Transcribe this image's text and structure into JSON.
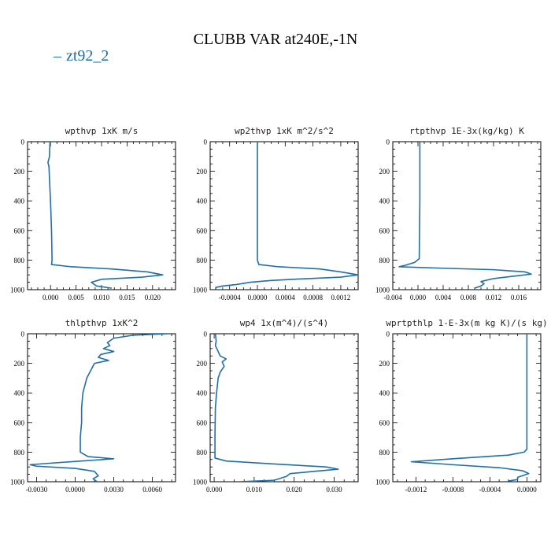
{
  "figure": {
    "title": "CLUBB VAR at240E,-1N",
    "legend_label": "zt92_2",
    "legend_color": "#1f6fa8"
  },
  "chart_data": [
    {
      "type": "line",
      "title": "wpthvp   1xK m/s",
      "xlim": [
        -0.0045,
        0.0245
      ],
      "ylim": [
        1000,
        0
      ],
      "xticks": [
        0.0,
        0.005,
        0.01,
        0.015,
        0.02
      ],
      "xtick_labels": [
        "0.000",
        "0.005",
        "0.010",
        "0.015",
        "0.020"
      ],
      "yticks": [
        0,
        200,
        400,
        600,
        800,
        1000
      ],
      "series": [
        {
          "color": "#1f6fa8",
          "points": [
            [
              -0.0001,
              0
            ],
            [
              -0.0002,
              100
            ],
            [
              -0.0005,
              140
            ],
            [
              -0.0003,
              170
            ],
            [
              -0.0002,
              250
            ],
            [
              0.0,
              400
            ],
            [
              0.0002,
              600
            ],
            [
              0.0003,
              800
            ],
            [
              0.0002,
              830
            ],
            [
              0.004,
              845
            ],
            [
              0.012,
              860
            ],
            [
              0.019,
              880
            ],
            [
              0.022,
              900
            ],
            [
              0.018,
              915
            ],
            [
              0.01,
              930
            ],
            [
              0.008,
              950
            ],
            [
              0.009,
              975
            ],
            [
              0.012,
              990
            ]
          ]
        }
      ]
    },
    {
      "type": "line",
      "title": "wp2thvp   1xK m^2/s^2",
      "xlim": [
        -0.00068,
        0.00145
      ],
      "ylim": [
        1000,
        0
      ],
      "xticks": [
        -0.0004,
        0.0,
        0.0004,
        0.0008,
        0.0012
      ],
      "xtick_labels": [
        "-0.0004",
        "0.0000",
        "0.0004",
        "0.0008",
        "0.0012"
      ],
      "yticks": [
        0,
        200,
        400,
        600,
        800,
        1000
      ],
      "series": [
        {
          "color": "#1f6fa8",
          "points": [
            [
              0.0,
              0
            ],
            [
              0.0,
              400
            ],
            [
              0.0,
              800
            ],
            [
              2e-05,
              830
            ],
            [
              0.0003,
              845
            ],
            [
              0.0009,
              860
            ],
            [
              0.0012,
              880
            ],
            [
              0.00145,
              900
            ],
            [
              0.0012,
              915
            ],
            [
              0.0006,
              928
            ],
            [
              0.0002,
              938
            ],
            [
              -0.0001,
              950
            ],
            [
              -0.0003,
              965
            ],
            [
              -0.0005,
              975
            ],
            [
              -0.0006,
              985
            ],
            [
              -0.0006,
              995
            ]
          ]
        }
      ]
    },
    {
      "type": "line",
      "title": "rtpthvp   1E-3x(kg/kg) K",
      "xlim": [
        -0.004,
        0.0195
      ],
      "ylim": [
        1000,
        0
      ],
      "xticks": [
        -0.004,
        0.0,
        0.004,
        0.008,
        0.012,
        0.016
      ],
      "xtick_labels": [
        "-0.004",
        "0.000",
        "0.004",
        "0.008",
        "0.012",
        "0.016"
      ],
      "yticks": [
        0,
        200,
        400,
        600,
        800,
        1000
      ],
      "series": [
        {
          "color": "#1f6fa8",
          "points": [
            [
              0.0003,
              0
            ],
            [
              0.0003,
              400
            ],
            [
              0.0002,
              790
            ],
            [
              -0.0005,
              815
            ],
            [
              -0.002,
              835
            ],
            [
              -0.003,
              845
            ],
            [
              0.004,
              855
            ],
            [
              0.012,
              865
            ],
            [
              0.017,
              880
            ],
            [
              0.018,
              895
            ],
            [
              0.015,
              910
            ],
            [
              0.012,
              925
            ],
            [
              0.01,
              945
            ],
            [
              0.0105,
              960
            ],
            [
              0.01,
              975
            ],
            [
              0.009,
              990
            ]
          ]
        }
      ]
    },
    {
      "type": "line",
      "title": "thlpthvp   1xK^2",
      "xlim": [
        -0.0037,
        0.0078
      ],
      "ylim": [
        1000,
        0
      ],
      "xticks": [
        -0.003,
        0.0,
        0.003,
        0.006
      ],
      "xtick_labels": [
        "-0.0030",
        "0.0000",
        "0.0030",
        "0.0060"
      ],
      "yticks": [
        0,
        200,
        400,
        600,
        800,
        1000
      ],
      "series": [
        {
          "color": "#1f6fa8",
          "points": [
            [
              0.0072,
              0
            ],
            [
              0.0045,
              10
            ],
            [
              0.003,
              30
            ],
            [
              0.0025,
              60
            ],
            [
              0.0027,
              80
            ],
            [
              0.0022,
              100
            ],
            [
              0.003,
              120
            ],
            [
              0.002,
              140
            ],
            [
              0.0018,
              160
            ],
            [
              0.0026,
              180
            ],
            [
              0.0015,
              200
            ],
            [
              0.0012,
              250
            ],
            [
              0.0009,
              300
            ],
            [
              0.0006,
              400
            ],
            [
              0.0005,
              500
            ],
            [
              0.0005,
              600
            ],
            [
              0.0004,
              700
            ],
            [
              0.0004,
              800
            ],
            [
              0.001,
              830
            ],
            [
              0.003,
              845
            ],
            [
              0.0005,
              860
            ],
            [
              -0.002,
              875
            ],
            [
              -0.0035,
              885
            ],
            [
              -0.003,
              895
            ],
            [
              0.0,
              910
            ],
            [
              0.0015,
              930
            ],
            [
              0.0018,
              960
            ],
            [
              0.0014,
              980
            ],
            [
              0.0017,
              1000
            ]
          ]
        }
      ]
    },
    {
      "type": "line",
      "title": "wp4   1x(m^4)/(s^4)",
      "xlim": [
        -0.001,
        0.036
      ],
      "ylim": [
        1000,
        0
      ],
      "xticks": [
        0.0,
        0.01,
        0.02,
        0.03
      ],
      "xtick_labels": [
        "0.000",
        "0.010",
        "0.020",
        "0.030"
      ],
      "yticks": [
        0,
        200,
        400,
        600,
        800,
        1000
      ],
      "series": [
        {
          "color": "#1f6fa8",
          "points": [
            [
              0.0003,
              0
            ],
            [
              0.0005,
              50
            ],
            [
              0.0003,
              80
            ],
            [
              0.001,
              120
            ],
            [
              0.0015,
              150
            ],
            [
              0.003,
              170
            ],
            [
              0.002,
              190
            ],
            [
              0.0025,
              220
            ],
            [
              0.0015,
              260
            ],
            [
              0.001,
              300
            ],
            [
              0.0006,
              400
            ],
            [
              0.0003,
              500
            ],
            [
              0.0002,
              700
            ],
            [
              0.0002,
              840
            ],
            [
              0.003,
              860
            ],
            [
              0.015,
              880
            ],
            [
              0.028,
              900
            ],
            [
              0.031,
              915
            ],
            [
              0.025,
              930
            ],
            [
              0.019,
              945
            ],
            [
              0.018,
              965
            ],
            [
              0.015,
              990
            ],
            [
              0.006,
              1000
            ]
          ]
        }
      ]
    },
    {
      "type": "line",
      "title": "wprtpthlp   1-E-3x(m kg K)/(s kg)",
      "xlim": [
        -0.00145,
        0.00015
      ],
      "ylim": [
        1000,
        0
      ],
      "xticks": [
        -0.0012,
        -0.0008,
        -0.0004,
        0.0
      ],
      "xtick_labels": [
        "-0.0012",
        "-0.0008",
        "-0.0004",
        "0.0000"
      ],
      "yticks": [
        0,
        200,
        400,
        600,
        800,
        1000
      ],
      "series": [
        {
          "color": "#1f6fa8",
          "points": [
            [
              0.0,
              0
            ],
            [
              0.0,
              400
            ],
            [
              0.0,
              780
            ],
            [
              -3e-05,
              800
            ],
            [
              -0.0002,
              820
            ],
            [
              -0.0008,
              845
            ],
            [
              -0.00125,
              865
            ],
            [
              -0.0008,
              885
            ],
            [
              -0.0003,
              905
            ],
            [
              -5e-05,
              925
            ],
            [
              2e-05,
              945
            ],
            [
              -0.0001,
              970
            ],
            [
              -0.0001,
              985
            ],
            [
              -0.0002,
              995
            ]
          ]
        }
      ]
    }
  ]
}
